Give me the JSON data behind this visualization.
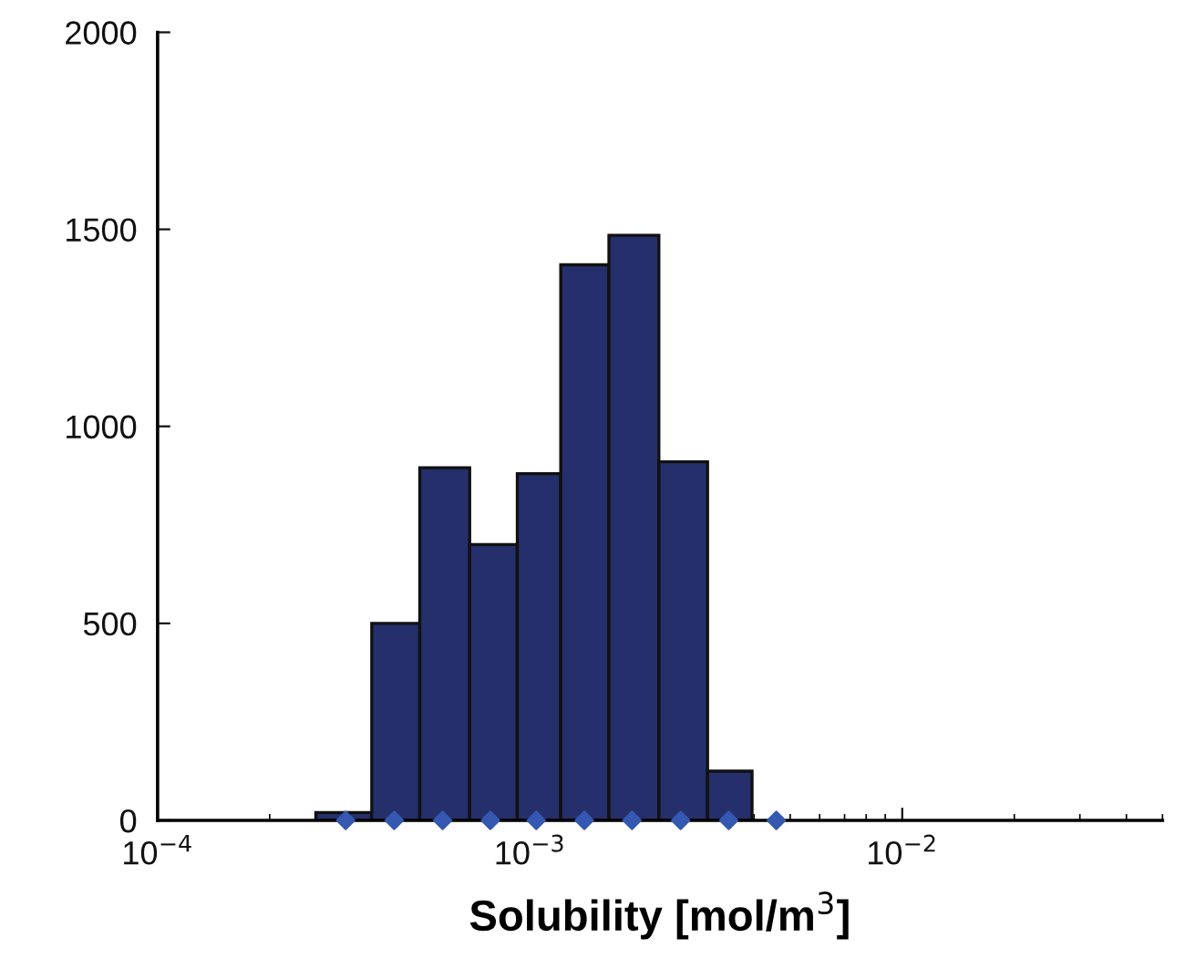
{
  "chart_data": {
    "type": "histogram",
    "xlabel": "Solubility [mol/m$^{3}$]",
    "log": "x",
    "grid": false,
    "legend": false,
    "xlim": [
      0.0001,
      0.05
    ],
    "xticks": [
      {
        "value": 0.0001,
        "label": "10$^{−4}$"
      },
      {
        "value": 0.001,
        "label": "10$^{−3}$"
      },
      {
        "value": 0.01,
        "label": "10$^{−2}$"
      }
    ],
    "ylim": [
      0,
      2000
    ],
    "yticks": [
      0,
      500,
      1000,
      1500,
      2000
    ],
    "series": [
      {
        "color": "#252f6b",
        "bins": [
          0.000266,
          0.000376,
          0.000506,
          0.000689,
          0.000925,
          0.00121,
          0.00163,
          0.00222,
          0.003,
          0.00395
        ],
        "values": [
          20,
          500,
          895,
          700,
          880,
          1410,
          1485,
          910,
          125
        ]
      },
      {
        "type": "scatter",
        "color": "#3558b0",
        "marker": "diamond",
        "x": [
          0.00032,
          0.000432,
          0.000583,
          0.000783,
          0.00104,
          0.0014,
          0.00188,
          0.00254,
          0.00342,
          0.00459
        ],
        "values": [
          0,
          0,
          0,
          0,
          0,
          0,
          0,
          0,
          0,
          0
        ]
      }
    ]
  }
}
